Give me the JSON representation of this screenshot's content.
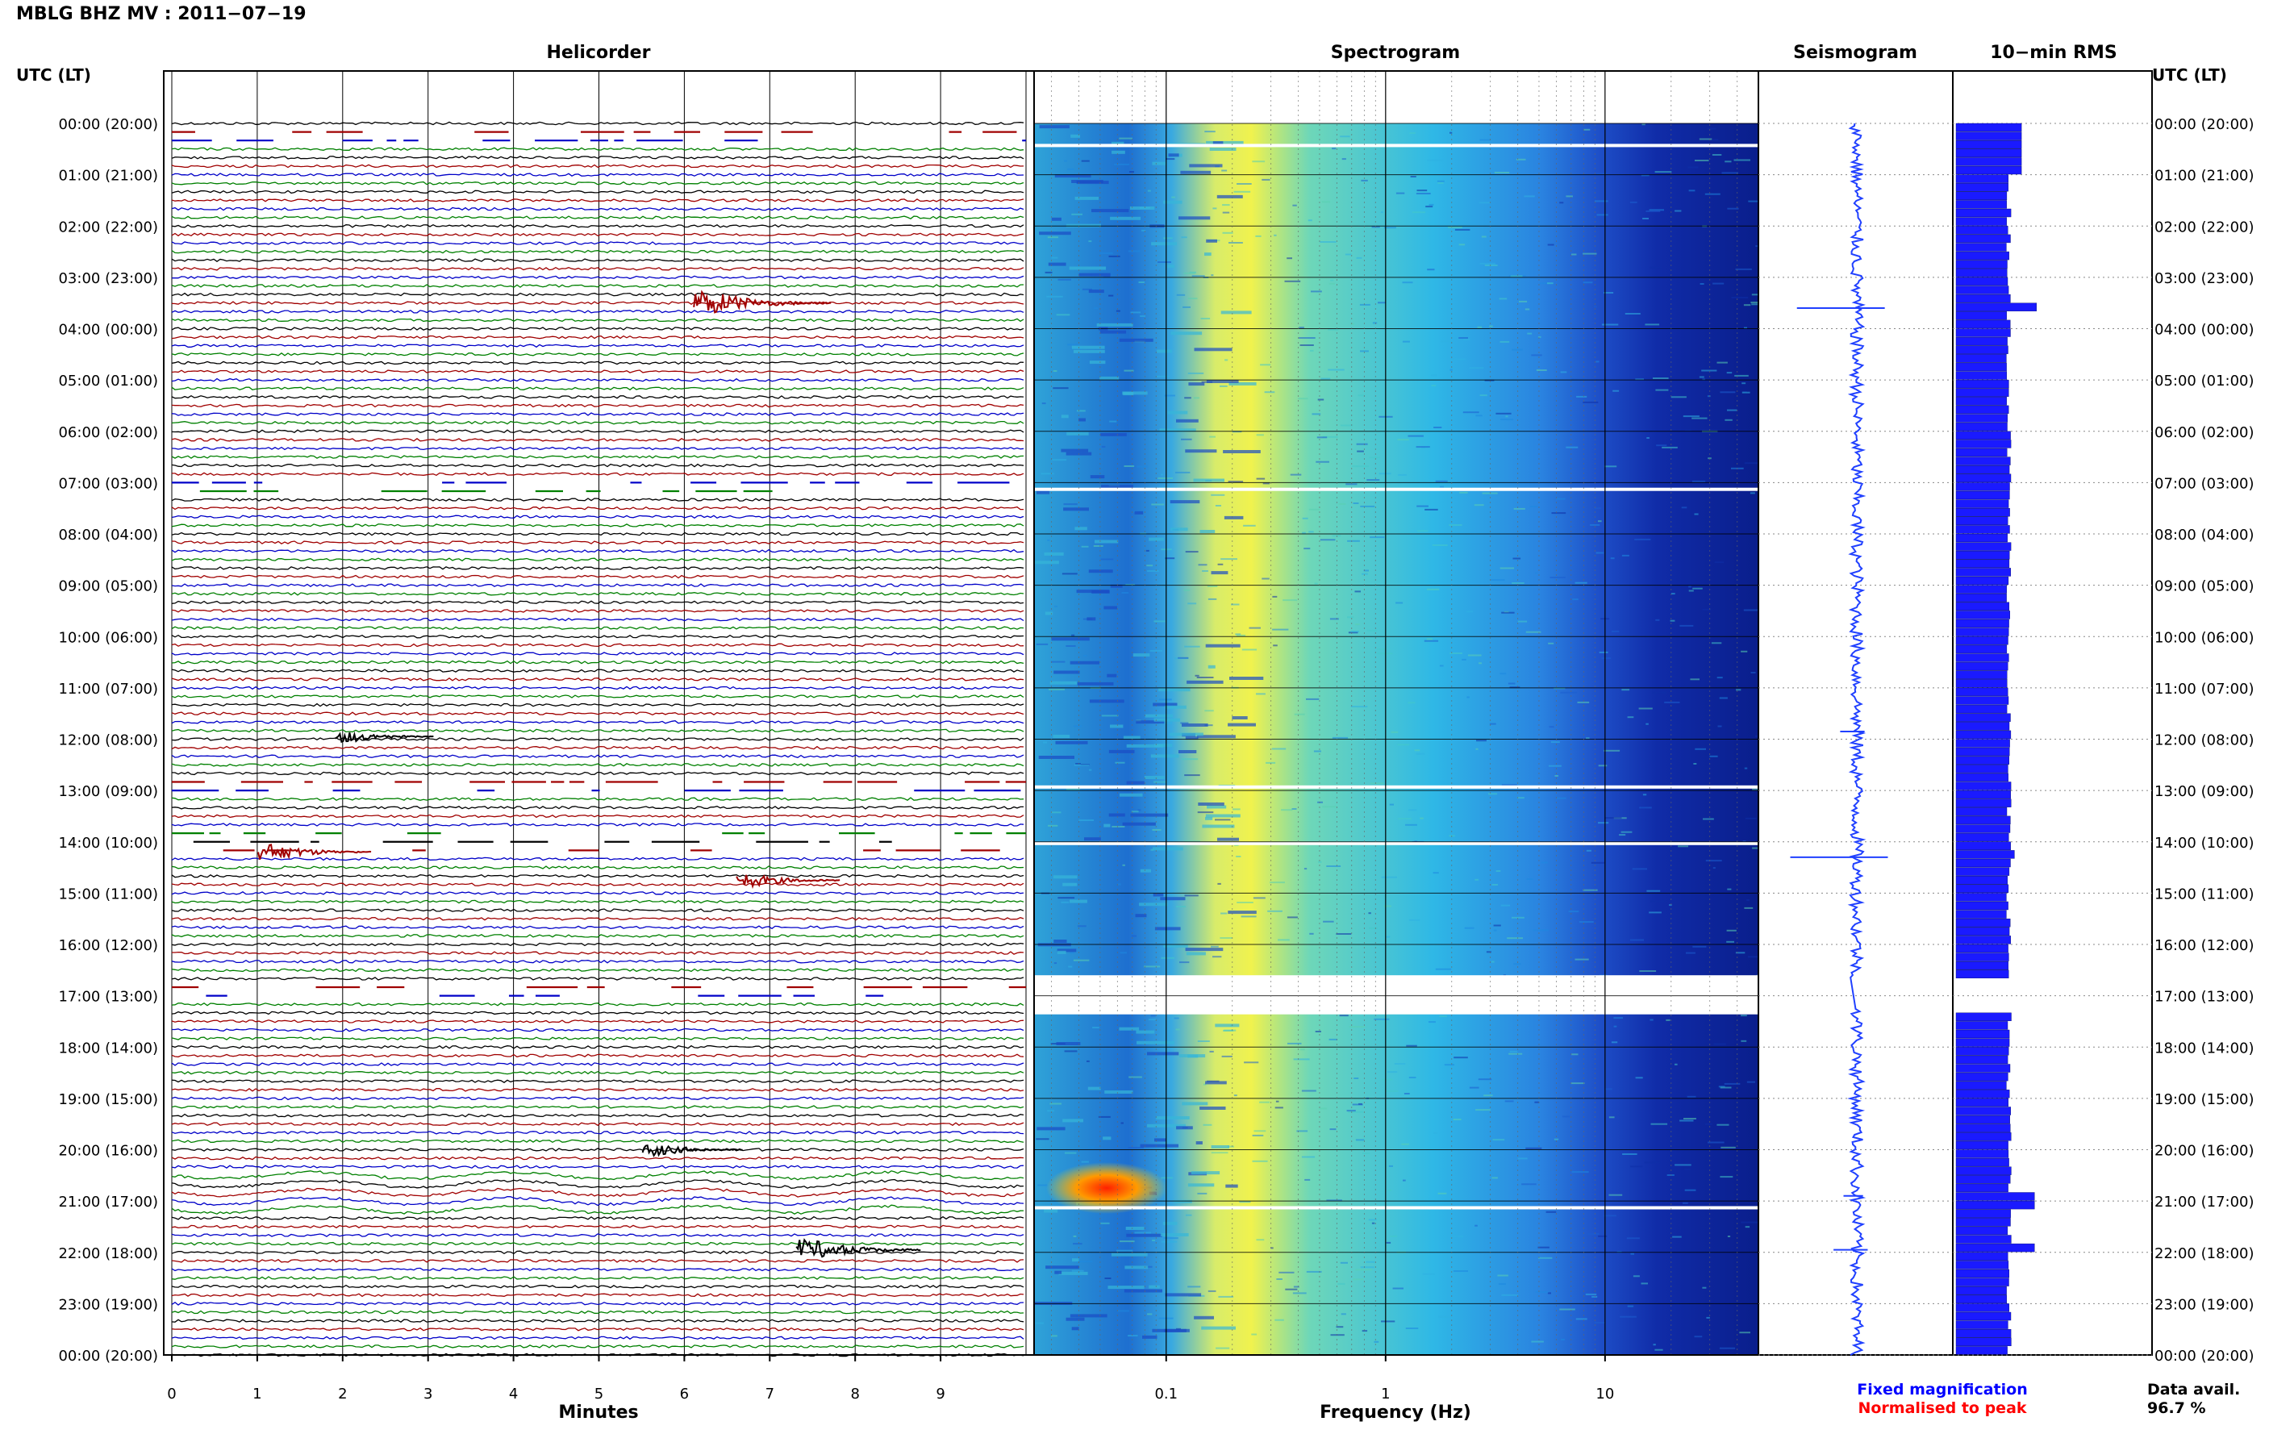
{
  "header": {
    "title": "MBLG BHZ MV : 2011−07−19",
    "utc_label_left": "UTC (LT)",
    "utc_label_right": "UTC (LT)"
  },
  "panels": {
    "helicorder": "Helicorder",
    "spectrogram": "Spectrogram",
    "seismogram": "Seismogram",
    "rms": "10−min RMS"
  },
  "footer": {
    "fixed_magnification": "Fixed magnification",
    "normalised_to_peak": "Normalised to peak",
    "data_avail_label": "Data avail.",
    "data_avail_value": "96.7 %"
  },
  "colors": {
    "trace_cycle": [
      "#000000",
      "#a00000",
      "#0000c8",
      "#008000"
    ],
    "fixed_magnification": "#0000ff",
    "normalised_to_peak": "#ff0000",
    "seismogram": "#2040ff",
    "rms_bars": "#1a1aff",
    "spectrogram_low": "#00209a",
    "spectrogram_high": "#ffff40"
  },
  "chart_data": [
    {
      "type": "line",
      "panel": "Helicorder",
      "xlabel": "Minutes",
      "xlim": [
        0,
        10
      ],
      "x_ticks": [
        "0",
        "1",
        "2",
        "3",
        "4",
        "5",
        "6",
        "7",
        "8",
        "9"
      ],
      "lines_per_hour": 6,
      "hour_labels": [
        "00:00 (20:00)",
        "01:00 (21:00)",
        "02:00 (22:00)",
        "03:00 (23:00)",
        "04:00 (00:00)",
        "05:00 (01:00)",
        "06:00 (02:00)",
        "07:00 (03:00)",
        "08:00 (04:00)",
        "09:00 (05:00)",
        "10:00 (06:00)",
        "11:00 (07:00)",
        "12:00 (08:00)",
        "13:00 (09:00)",
        "14:00 (10:00)",
        "15:00 (11:00)",
        "16:00 (12:00)",
        "17:00 (13:00)",
        "18:00 (14:00)",
        "19:00 (15:00)",
        "20:00 (16:00)",
        "21:00 (17:00)",
        "22:00 (18:00)",
        "23:00 (19:00)",
        "00:00 (20:00)"
      ],
      "gap_hours": [
        0.3,
        7.1,
        12.9,
        14.0,
        16.85
      ],
      "events": [
        {
          "hour": 3.5,
          "minute": 6.3,
          "amplitude": 3.0
        },
        {
          "hour": 14.2,
          "minute": 1.2,
          "amplitude": 2.0
        },
        {
          "hour": 14.75,
          "minute": 6.8,
          "amplitude": 1.6
        },
        {
          "hour": 20.0,
          "minute": 5.7,
          "amplitude": 1.5
        },
        {
          "hour": 21.95,
          "minute": 7.5,
          "amplitude": 2.5
        },
        {
          "hour": 11.95,
          "minute": 2.1,
          "amplitude": 1.4
        }
      ]
    },
    {
      "type": "heatmap",
      "panel": "Spectrogram",
      "xlabel": "Frequency (Hz)",
      "x_scale": "log",
      "xlim": [
        0.025,
        50
      ],
      "x_ticks": [
        "0.1",
        "1",
        "10"
      ],
      "x_tick_values": [
        0.1,
        1,
        10
      ],
      "ylim_hours": [
        0,
        24
      ],
      "peak_band_hz": [
        0.2,
        0.4
      ],
      "gap_hours": [
        0.4,
        7.1,
        12.9,
        14.0,
        16.6,
        17.3,
        21.1
      ]
    },
    {
      "type": "line",
      "panel": "Seismogram",
      "xlim": [
        -1,
        1
      ],
      "ylim_hours": [
        0,
        24
      ],
      "spikes": [
        {
          "hour": 3.6,
          "value": 0.9
        },
        {
          "hour": 11.85,
          "value": 0.25
        },
        {
          "hour": 14.3,
          "value": 1.0
        },
        {
          "hour": 20.9,
          "value": 0.2
        },
        {
          "hour": 21.95,
          "value": 0.35
        }
      ]
    },
    {
      "type": "bar",
      "panel": "10-min RMS",
      "orientation": "horizontal",
      "ylim_hours": [
        0,
        24
      ],
      "note": "one bar per 10 minutes, relative RMS amplitude",
      "baseline": 0.55,
      "peaks": [
        {
          "hour": 3.6,
          "value": 0.8
        },
        {
          "hour": 14.3,
          "value": 0.58
        },
        {
          "hour": 21.0,
          "value": 0.78
        },
        {
          "hour": 21.95,
          "value": 0.78
        }
      ]
    }
  ]
}
